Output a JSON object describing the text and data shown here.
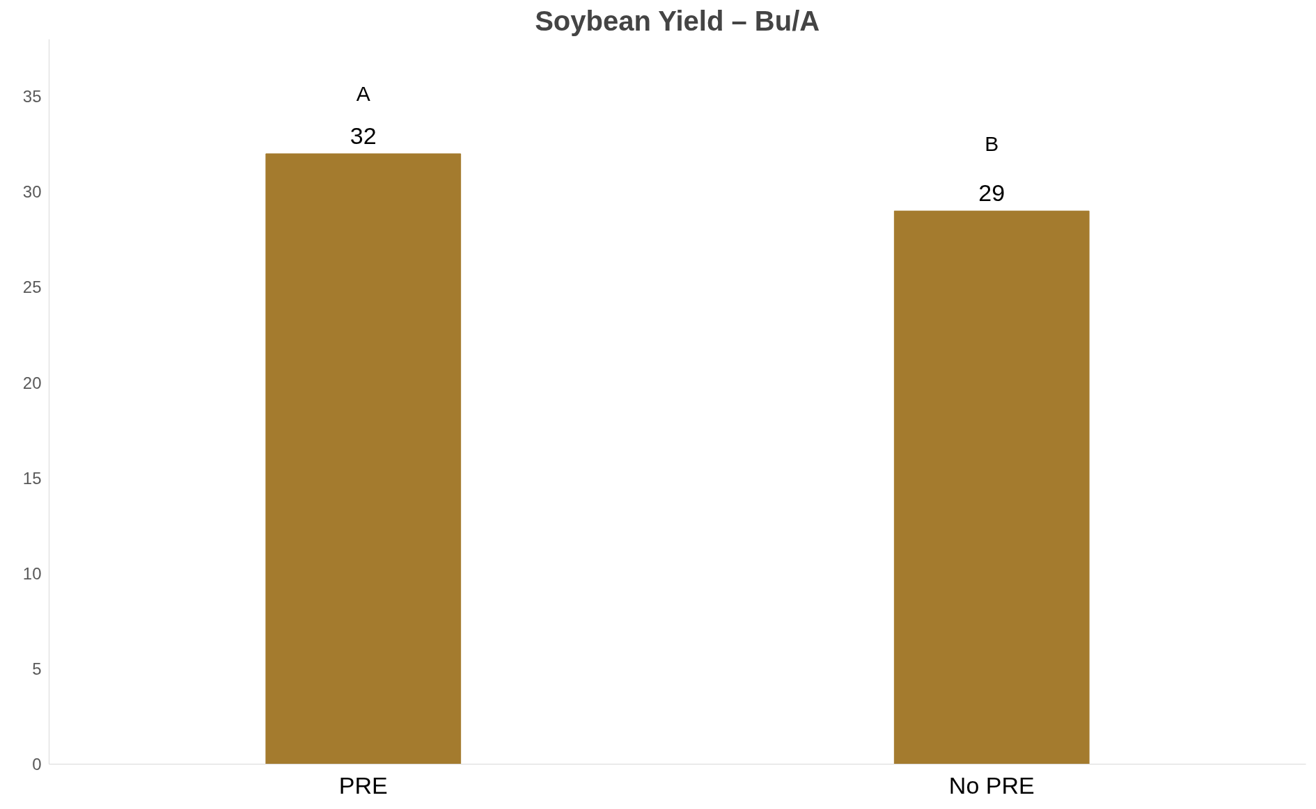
{
  "chart_data": {
    "type": "bar",
    "title": "Soybean Yield – Bu/A",
    "categories": [
      "PRE",
      "No PRE"
    ],
    "values": [
      32,
      29
    ],
    "color": "#a47b2e",
    "ylim": [
      0,
      38
    ],
    "yticks": [
      0,
      5,
      10,
      15,
      20,
      25,
      30,
      35
    ],
    "data_labels": true,
    "grid": false,
    "annotations": [
      "A",
      "B"
    ]
  }
}
